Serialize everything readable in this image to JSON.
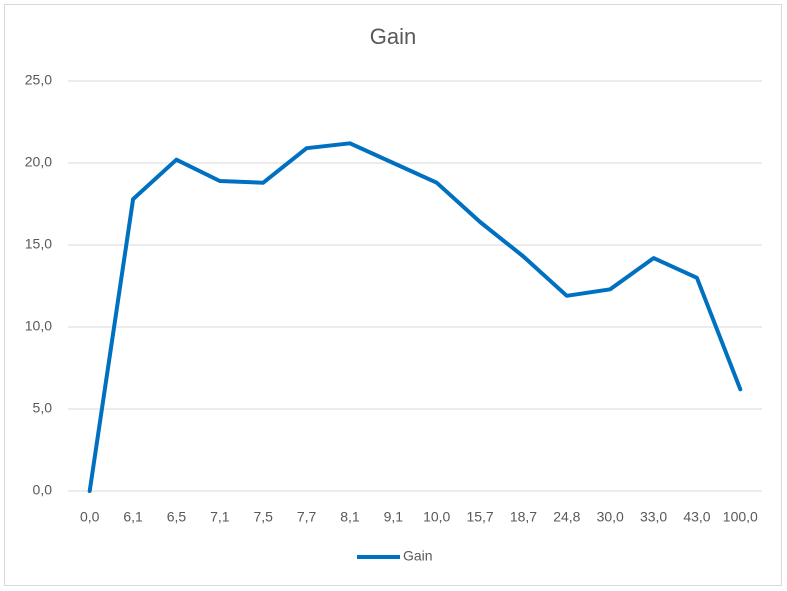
{
  "chart_data": {
    "type": "line",
    "title": "Gain",
    "categories": [
      "0,0",
      "6,1",
      "6,5",
      "7,1",
      "7,5",
      "7,7",
      "8,1",
      "9,1",
      "10,0",
      "15,7",
      "18,7",
      "24,8",
      "30,0",
      "33,0",
      "43,0",
      "100,0"
    ],
    "series": [
      {
        "name": "Gain",
        "color": "#0070c0",
        "values": [
          0,
          17.8,
          20.2,
          18.9,
          18.8,
          20.9,
          21.2,
          20.0,
          18.8,
          16.4,
          14.3,
          11.9,
          12.3,
          14.2,
          13.0,
          6.2
        ]
      }
    ],
    "ylim": [
      0,
      25
    ],
    "yticks": [
      {
        "value": 0,
        "label": "0,0"
      },
      {
        "value": 5,
        "label": "5,0"
      },
      {
        "value": 10,
        "label": "10,0"
      },
      {
        "value": 15,
        "label": "15,0"
      },
      {
        "value": 20,
        "label": "20,0"
      },
      {
        "value": 25,
        "label": "25,0"
      }
    ],
    "grid": true,
    "legend": "bottom"
  }
}
